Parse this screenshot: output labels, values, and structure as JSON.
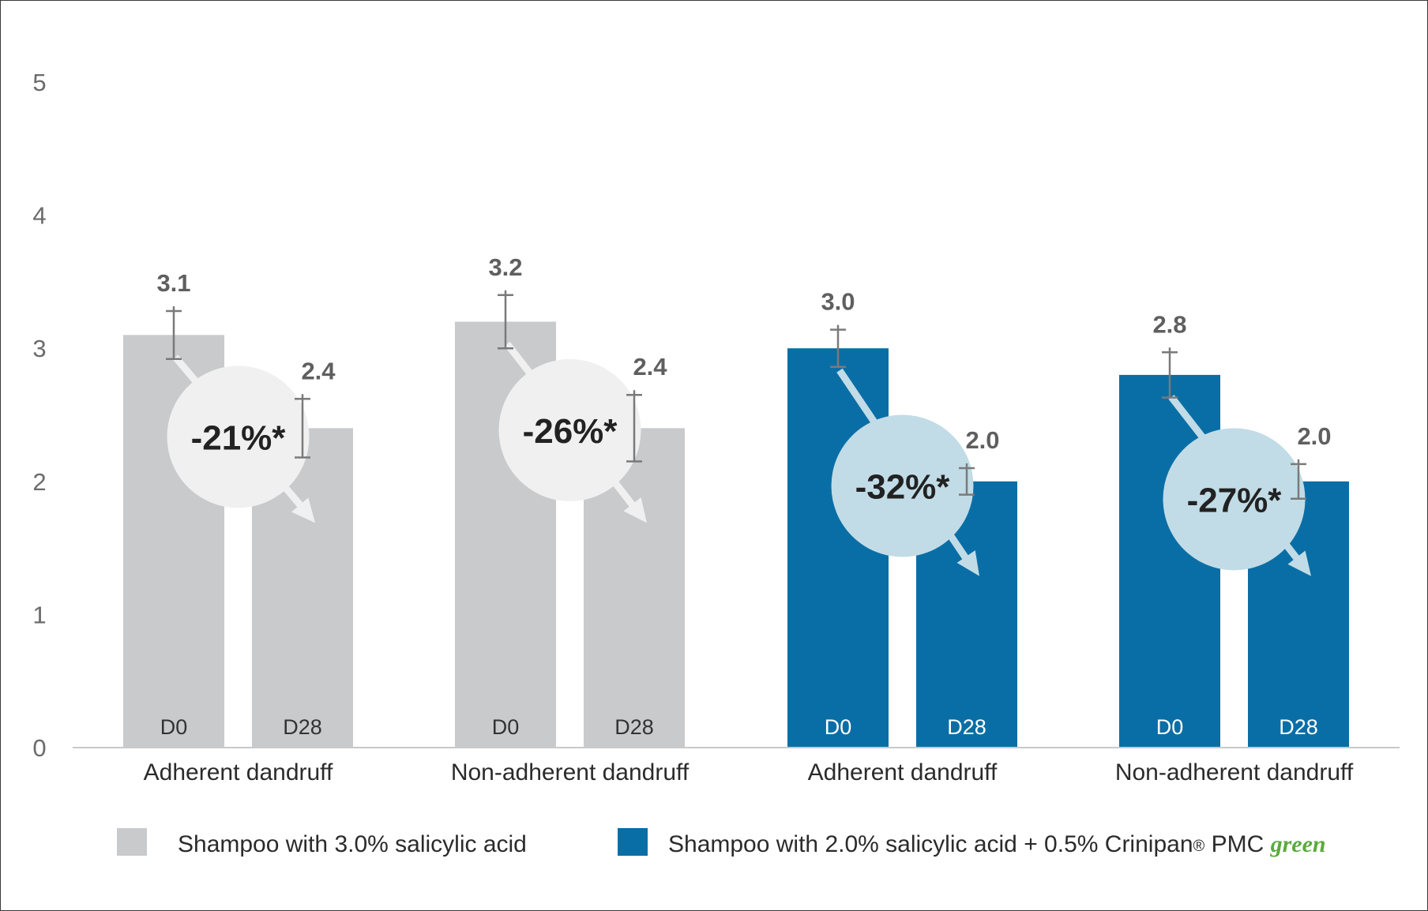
{
  "chart_data": {
    "type": "bar",
    "ylim": [
      0,
      5
    ],
    "yticks": [
      "0",
      "1",
      "2",
      "3",
      "4",
      "5"
    ],
    "grid": false,
    "legend_position": "bottom",
    "groups": [
      {
        "category": "Adherent  dandruff",
        "series": "Shampoo with 3.0% salicylic acid",
        "color": "#c9cacc",
        "circle_color": "#f0f0f0",
        "bars": [
          {
            "label": "D0",
            "value": 3.1,
            "value_label": "3.1",
            "err": 0.18
          },
          {
            "label": "D28",
            "value": 2.4,
            "value_label": "2.4",
            "err": 0.22
          }
        ],
        "change": "-21%*"
      },
      {
        "category": "Non-adherent  dandruff",
        "series": "Shampoo with 3.0% salicylic acid",
        "color": "#c9cacc",
        "circle_color": "#f0f0f0",
        "bars": [
          {
            "label": "D0",
            "value": 3.2,
            "value_label": "3.2",
            "err": 0.2
          },
          {
            "label": "D28",
            "value": 2.4,
            "value_label": "2.4",
            "err": 0.25
          }
        ],
        "change": "-26%*"
      },
      {
        "category": "Adherent  dandruff",
        "series": "Shampoo with 2.0% salicylic acid + 0.5% Crinipan® PMC green",
        "color": "#0a6ea6",
        "circle_color": "#c1dce6",
        "bars": [
          {
            "label": "D0",
            "value": 3.0,
            "value_label": "3.0",
            "err": 0.14
          },
          {
            "label": "D28",
            "value": 2.0,
            "value_label": "2.0",
            "err": 0.1
          }
        ],
        "change": "-32%*"
      },
      {
        "category": "Non-adherent  dandruff",
        "series": "Shampoo with 2.0% salicylic acid + 0.5% Crinipan® PMC green",
        "color": "#0a6ea6",
        "circle_color": "#c1dce6",
        "bars": [
          {
            "label": "D0",
            "value": 2.8,
            "value_label": "2.8",
            "err": 0.17
          },
          {
            "label": "D28",
            "value": 2.0,
            "value_label": "2.0",
            "err": 0.13
          }
        ],
        "change": "-27%*"
      }
    ],
    "legend": [
      {
        "color": "#c9cacc",
        "text": "Shampoo with 3.0% salicylic acid"
      },
      {
        "color": "#0a6ea6",
        "text": "Shampoo with 2.0% salicylic acid + 0.5% Crinipan",
        "reg": "®",
        "text_after": " PMC ",
        "green": "green"
      }
    ]
  }
}
